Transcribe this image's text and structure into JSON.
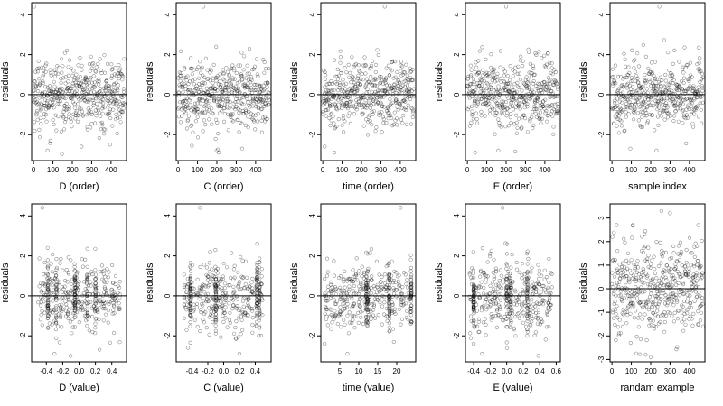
{
  "chart_data": [
    {
      "type": "scatter",
      "xlabel": "D (order)",
      "ylabel": "residuals",
      "xlim": [
        -10,
        480
      ],
      "ylim": [
        -3.3,
        4.6
      ],
      "xticks": [
        0,
        100,
        200,
        300,
        400
      ],
      "xtick_labels": [
        "0",
        "100",
        "200",
        "300",
        "400"
      ],
      "yticks": [
        -2,
        0,
        2,
        4
      ],
      "ytick_labels": [
        "-2",
        "0",
        "2",
        "4"
      ],
      "hline": 0,
      "x_mode": "index",
      "x_range": [
        0,
        470
      ],
      "points": [
        [
          3,
          4.4
        ],
        [
          72,
          -2.8
        ],
        [
          395,
          -2.5
        ]
      ]
    },
    {
      "type": "scatter",
      "xlabel": "C (order)",
      "ylabel": "residuals",
      "xlim": [
        -10,
        480
      ],
      "ylim": [
        -3.3,
        4.6
      ],
      "xticks": [
        0,
        100,
        200,
        300,
        400
      ],
      "xtick_labels": [
        "0",
        "100",
        "200",
        "300",
        "400"
      ],
      "yticks": [
        -2,
        0,
        2,
        4
      ],
      "ytick_labels": [
        "-2",
        "0",
        "2",
        "4"
      ],
      "hline": 0,
      "x_mode": "index",
      "x_range": [
        0,
        470
      ],
      "points": [
        [
          130,
          4.4
        ],
        [
          330,
          -2.7
        ],
        [
          210,
          -2.9
        ]
      ]
    },
    {
      "type": "scatter",
      "xlabel": "time (order)",
      "ylabel": "residuals",
      "xlim": [
        -10,
        480
      ],
      "ylim": [
        -3.3,
        4.6
      ],
      "xticks": [
        0,
        100,
        200,
        300,
        400
      ],
      "xtick_labels": [
        "0",
        "100",
        "200",
        "300",
        "400"
      ],
      "yticks": [
        -2,
        0,
        2,
        4
      ],
      "ytick_labels": [
        "-2",
        "0",
        "2",
        "4"
      ],
      "hline": 0,
      "x_mode": "index",
      "x_range": [
        0,
        470
      ],
      "points": [
        [
          320,
          4.4
        ],
        [
          10,
          -2.6
        ],
        [
          60,
          -2.9
        ]
      ]
    },
    {
      "type": "scatter",
      "xlabel": "E (order)",
      "ylabel": "residuals",
      "xlim": [
        -10,
        480
      ],
      "ylim": [
        -3.3,
        4.6
      ],
      "xticks": [
        0,
        100,
        200,
        300,
        400
      ],
      "xtick_labels": [
        "0",
        "100",
        "200",
        "300",
        "400"
      ],
      "yticks": [
        -2,
        0,
        2,
        4
      ],
      "ytick_labels": [
        "-2",
        "0",
        "2",
        "4"
      ],
      "hline": 0,
      "x_mode": "index",
      "x_range": [
        0,
        470
      ],
      "points": [
        [
          200,
          4.4
        ],
        [
          40,
          -2.9
        ],
        [
          160,
          -2.8
        ]
      ]
    },
    {
      "type": "scatter",
      "xlabel": "sample index",
      "ylabel": "residuals",
      "xlim": [
        -10,
        480
      ],
      "ylim": [
        -3.3,
        4.6
      ],
      "xticks": [
        0,
        100,
        200,
        300,
        400
      ],
      "xtick_labels": [
        "0",
        "100",
        "200",
        "300",
        "400"
      ],
      "yticks": [
        -2,
        0,
        2,
        4
      ],
      "ytick_labels": [
        "-2",
        "0",
        "2",
        "4"
      ],
      "hline": 0,
      "x_mode": "index",
      "x_range": [
        0,
        470
      ],
      "points": [
        [
          245,
          4.4
        ],
        [
          230,
          -2.8
        ],
        [
          95,
          -2.7
        ]
      ]
    },
    {
      "type": "scatter",
      "xlabel": "D (value)",
      "ylabel": "residuals",
      "xlim": [
        -0.58,
        0.58
      ],
      "ylim": [
        -3.3,
        4.6
      ],
      "xticks": [
        -0.4,
        -0.2,
        0.0,
        0.2,
        0.4
      ],
      "xtick_labels": [
        "-0.4",
        "-0.2",
        "0.0",
        "0.2",
        "0.4"
      ],
      "yticks": [
        -2,
        0,
        2,
        4
      ],
      "ytick_labels": [
        "-2",
        "0",
        "2",
        "4"
      ],
      "hline": 0,
      "x_mode": "value",
      "x_range": [
        -0.5,
        0.5
      ],
      "x_clusters": [
        -0.38,
        -0.28,
        -0.05,
        0.1,
        0.2
      ],
      "points": [
        [
          -0.45,
          4.4
        ],
        [
          -0.3,
          -2.9
        ],
        [
          0.25,
          -2.7
        ]
      ]
    },
    {
      "type": "scatter",
      "xlabel": "C (value)",
      "ylabel": "residuals",
      "xlim": [
        -0.6,
        0.6
      ],
      "ylim": [
        -3.3,
        4.6
      ],
      "xticks": [
        -0.4,
        -0.2,
        0.0,
        0.2,
        0.4
      ],
      "xtick_labels": [
        "-0.4",
        "-0.2",
        "0.0",
        "0.2",
        "0.4"
      ],
      "yticks": [
        -2,
        0,
        2,
        4
      ],
      "ytick_labels": [
        "-2",
        "0",
        "2",
        "4"
      ],
      "hline": 0,
      "x_mode": "value",
      "x_range": [
        -0.5,
        0.5
      ],
      "x_clusters": [
        -0.42,
        0.42,
        0.45,
        -0.1
      ],
      "points": [
        [
          -0.3,
          4.4
        ],
        [
          0.2,
          -2.9
        ],
        [
          -0.45,
          -2.6
        ]
      ]
    },
    {
      "type": "scatter",
      "xlabel": "time (value)",
      "ylabel": "residuals",
      "xlim": [
        0,
        25
      ],
      "ylim": [
        -3.3,
        4.6
      ],
      "xticks": [
        5,
        10,
        15,
        20
      ],
      "xtick_labels": [
        "5",
        "10",
        "15",
        "20"
      ],
      "yticks": [
        -2,
        0,
        2,
        4
      ],
      "ytick_labels": [
        "-2",
        "0",
        "2",
        "4"
      ],
      "hline": 0,
      "x_mode": "value",
      "x_range": [
        1,
        24
      ],
      "x_clusters": [
        12,
        12.3,
        23.8,
        18
      ],
      "points": [
        [
          21,
          4.4
        ],
        [
          1,
          -2.4
        ],
        [
          7,
          -2.9
        ]
      ]
    },
    {
      "type": "scatter",
      "xlabel": "E (value)",
      "ylabel": "residuals",
      "xlim": [
        -0.5,
        0.65
      ],
      "ylim": [
        -3.3,
        4.6
      ],
      "xticks": [
        -0.4,
        -0.2,
        0.0,
        0.2,
        0.4,
        0.6
      ],
      "xtick_labels": [
        "-0.4",
        "-0.2",
        "0.0",
        "0.2",
        "0.4",
        "0.6"
      ],
      "yticks": [
        -2,
        0,
        2,
        4
      ],
      "ytick_labels": [
        "-2",
        "0",
        "2",
        "4"
      ],
      "hline": 0,
      "x_mode": "value",
      "x_range": [
        -0.45,
        0.55
      ],
      "x_clusters": [
        0.0,
        0.05,
        0.25,
        -0.4
      ],
      "points": [
        [
          -0.05,
          4.4
        ],
        [
          -0.3,
          -2.9
        ],
        [
          -0.4,
          -2.4
        ]
      ]
    },
    {
      "type": "scatter",
      "xlabel": "randam example",
      "ylabel": "residuals",
      "xlim": [
        -10,
        480
      ],
      "ylim": [
        -3.1,
        3.6
      ],
      "xticks": [
        0,
        100,
        200,
        300,
        400
      ],
      "xtick_labels": [
        "0",
        "100",
        "200",
        "300",
        "400"
      ],
      "yticks": [
        -3,
        -2,
        -1,
        0,
        1,
        2,
        3
      ],
      "ytick_labels": [
        "-3",
        "-2",
        "-1",
        "0",
        "1",
        "2",
        "3"
      ],
      "hline": 0,
      "x_mode": "index",
      "x_range": [
        0,
        470
      ],
      "y_spread": 1.0,
      "points": [
        [
          200,
          -2.9
        ],
        [
          255,
          3.3
        ],
        [
          300,
          3.2
        ]
      ]
    }
  ]
}
